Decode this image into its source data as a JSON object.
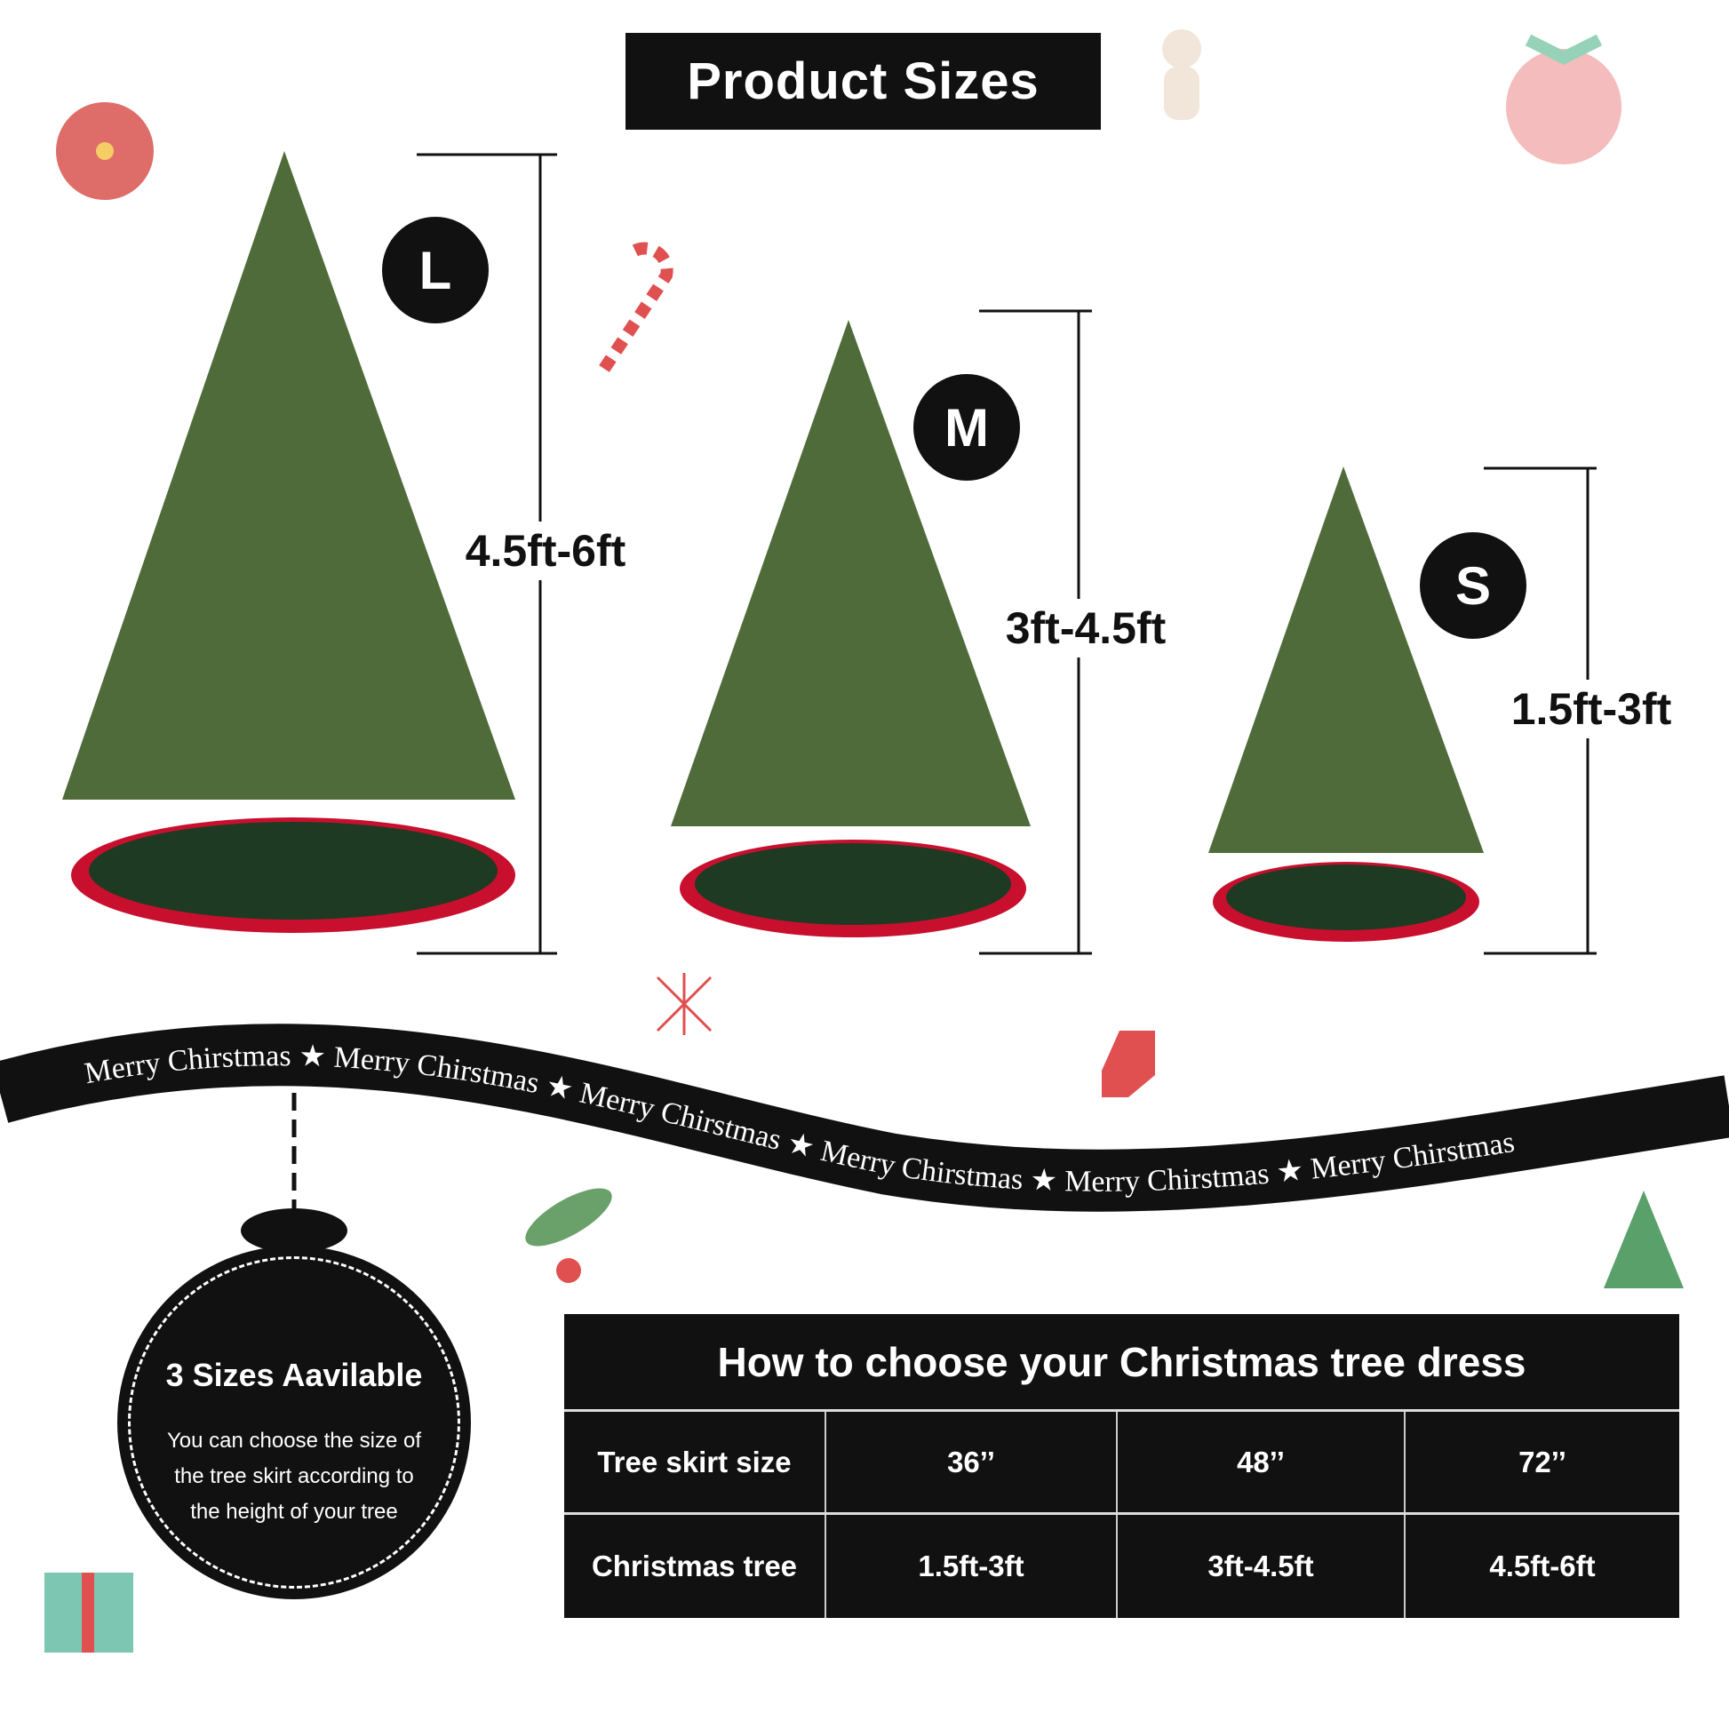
{
  "title": "Product Sizes",
  "sizes": [
    {
      "badge": "L",
      "range": "4.5ft-6ft"
    },
    {
      "badge": "M",
      "range": "3ft-4.5ft"
    },
    {
      "badge": "S",
      "range": "1.5ft-3ft"
    }
  ],
  "ribbon": {
    "text": "Merry Chirstmas"
  },
  "info_badge": {
    "heading": "3 Sizes Aavilable",
    "body": "You can choose the size of the tree skirt according to the height of your tree"
  },
  "table": {
    "title": "How to choose your Christmas tree dress",
    "rows": [
      {
        "label": "Tree skirt size",
        "values": [
          "36’’",
          "48’’",
          "72’’"
        ]
      },
      {
        "label": "Christmas tree",
        "values": [
          "1.5ft-3ft",
          "3ft-4.5ft",
          "4.5ft-6ft"
        ]
      }
    ]
  },
  "colors": {
    "dark": "#111111",
    "tree": "#4f6b3a",
    "skirt": "#1e3a22",
    "skirt_edge": "#c8102e"
  }
}
